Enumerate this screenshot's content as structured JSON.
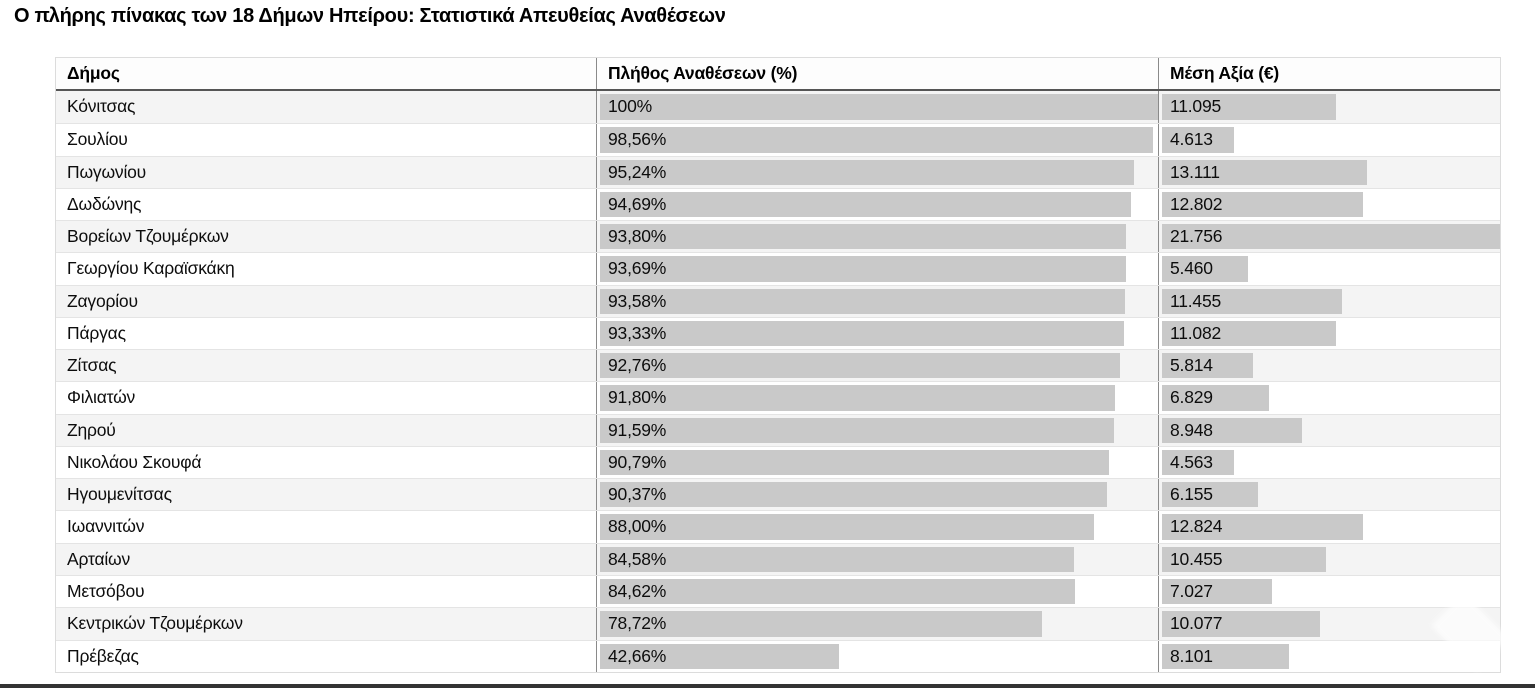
{
  "title": "Ο πλήρης πίνακας των 18 Δήμων Ηπείρου: Στατιστικά Απευθείας Αναθέσεων",
  "table": {
    "columns": [
      "Δήμος",
      "Πλήθος Αναθέσεων (%)",
      "Μέση Αξία (€)"
    ],
    "pct_max": 100,
    "value_max": 21756,
    "rows": [
      {
        "municipality": "Κόνιτσας",
        "pct_label": "100%",
        "pct": 100,
        "value_label": "11.095",
        "value": 11095
      },
      {
        "municipality": "Σουλίου",
        "pct_label": "98,56%",
        "pct": 98.56,
        "value_label": "4.613",
        "value": 4613
      },
      {
        "municipality": "Πωγωνίου",
        "pct_label": "95,24%",
        "pct": 95.24,
        "value_label": "13.111",
        "value": 13111
      },
      {
        "municipality": "Δωδώνης",
        "pct_label": "94,69%",
        "pct": 94.69,
        "value_label": "12.802",
        "value": 12802
      },
      {
        "municipality": "Βορείων Τζουμέρκων",
        "pct_label": "93,80%",
        "pct": 93.8,
        "value_label": "21.756",
        "value": 21756
      },
      {
        "municipality": "Γεωργίου Καραϊσκάκη",
        "pct_label": "93,69%",
        "pct": 93.69,
        "value_label": "5.460",
        "value": 5460
      },
      {
        "municipality": "Ζαγορίου",
        "pct_label": "93,58%",
        "pct": 93.58,
        "value_label": "11.455",
        "value": 11455
      },
      {
        "municipality": "Πάργας",
        "pct_label": "93,33%",
        "pct": 93.33,
        "value_label": "11.082",
        "value": 11082
      },
      {
        "municipality": "Ζίτσας",
        "pct_label": "92,76%",
        "pct": 92.76,
        "value_label": "5.814",
        "value": 5814
      },
      {
        "municipality": "Φιλιατών",
        "pct_label": "91,80%",
        "pct": 91.8,
        "value_label": "6.829",
        "value": 6829
      },
      {
        "municipality": "Ζηρού",
        "pct_label": "91,59%",
        "pct": 91.59,
        "value_label": "8.948",
        "value": 8948
      },
      {
        "municipality": "Νικολάου Σκουφά",
        "pct_label": "90,79%",
        "pct": 90.79,
        "value_label": "4.563",
        "value": 4563
      },
      {
        "municipality": "Ηγουμενίτσας",
        "pct_label": "90,37%",
        "pct": 90.37,
        "value_label": "6.155",
        "value": 6155
      },
      {
        "municipality": "Ιωαννιτών",
        "pct_label": "88,00%",
        "pct": 88.0,
        "value_label": "12.824",
        "value": 12824
      },
      {
        "municipality": "Αρταίων",
        "pct_label": "84,58%",
        "pct": 84.58,
        "value_label": "10.455",
        "value": 10455
      },
      {
        "municipality": "Μετσόβου",
        "pct_label": "84,62%",
        "pct": 84.62,
        "value_label": "7.027",
        "value": 7027
      },
      {
        "municipality": "Κεντρικών Τζουμέρκων",
        "pct_label": "78,72%",
        "pct": 78.72,
        "value_label": "10.077",
        "value": 10077
      },
      {
        "municipality": "Πρέβεζας",
        "pct_label": "42,66%",
        "pct": 42.66,
        "value_label": "8.101",
        "value": 8101
      }
    ]
  },
  "chart_data": {
    "type": "table",
    "title": "Ο πλήρης πίνακας των 18 Δήμων Ηπείρου: Στατιστικά Απευθείας Αναθέσεων",
    "columns": [
      "Δήμος",
      "Πλήθος Αναθέσεων (%)",
      "Μέση Αξία (€)"
    ],
    "rows": [
      [
        "Κόνιτσας",
        100,
        11095
      ],
      [
        "Σουλίου",
        98.56,
        4613
      ],
      [
        "Πωγωνίου",
        95.24,
        13111
      ],
      [
        "Δωδώνης",
        94.69,
        12802
      ],
      [
        "Βορείων Τζουμέρκων",
        93.8,
        21756
      ],
      [
        "Γεωργίου Καραϊσκάκη",
        93.69,
        5460
      ],
      [
        "Ζαγορίου",
        93.58,
        11455
      ],
      [
        "Πάργας",
        93.33,
        11082
      ],
      [
        "Ζίτσας",
        92.76,
        5814
      ],
      [
        "Φιλιατών",
        91.8,
        6829
      ],
      [
        "Ζηρού",
        91.59,
        8948
      ],
      [
        "Νικολάου Σκουφά",
        90.79,
        4563
      ],
      [
        "Ηγουμενίτσας",
        90.37,
        6155
      ],
      [
        "Ιωαννιτών",
        88.0,
        12824
      ],
      [
        "Αρταίων",
        84.58,
        10455
      ],
      [
        "Μετσόβου",
        84.62,
        7027
      ],
      [
        "Κεντρικών Τζουμέρκων",
        78.72,
        10077
      ],
      [
        "Πρέβεζας",
        42.66,
        8101
      ]
    ],
    "layout_hints": {
      "embedded_bars": true,
      "pct_bar_scale_max": 100,
      "value_bar_scale_max": 21756,
      "alternating_row_background": true
    }
  },
  "colors": {
    "bar": "#c9c9c9",
    "row_alt_bg": "#f4f4f4",
    "header_underline": "#555555",
    "table_border": "#dcdcdc",
    "column_divider": "#8a8a8a",
    "bottom_bar": "#333333"
  }
}
